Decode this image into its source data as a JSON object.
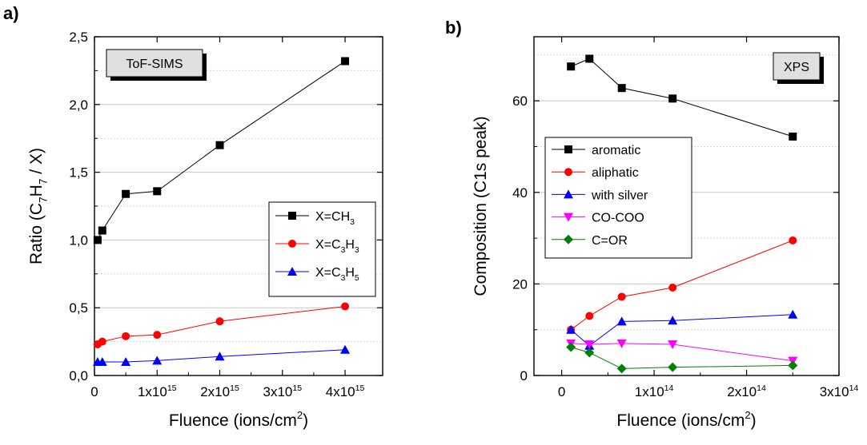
{
  "figure": {
    "panel_a": "a)",
    "panel_b": "b)"
  },
  "chart_data": [
    {
      "type": "line",
      "inset_label": "ToF-SIMS",
      "xlabel": "Fluence (ions/cm²)",
      "ylabel": "Ratio (C₇H₇ / X)",
      "xlim": [
        0,
        4600000000000000.0
      ],
      "ylim": [
        0,
        2.5
      ],
      "y_ticks": [
        0.0,
        0.5,
        1.0,
        1.5,
        2.0,
        2.5
      ],
      "y_tick_labels": [
        "0,0",
        "0,5",
        "1,0",
        "1,5",
        "2,0",
        "2,5"
      ],
      "x_ticks": [
        0,
        1000000000000000.0,
        2000000000000000.0,
        3000000000000000.0,
        4000000000000000.0
      ],
      "x_tick_labels": [
        "0",
        "1x10¹⁵",
        "2x10¹⁵",
        "3x10¹⁵",
        "4x10¹⁵"
      ],
      "grid": "horizontal",
      "legend_position": "right-middle",
      "series": [
        {
          "name": "X=CH₃",
          "color": "#000000",
          "marker": "square",
          "x": [
            50000000000000.0,
            125000000000000.0,
            500000000000000.0,
            1000000000000000.0,
            2000000000000000.0,
            4000000000000000.0
          ],
          "y": [
            1.0,
            1.07,
            1.34,
            1.36,
            1.7,
            2.32
          ]
        },
        {
          "name": "X=C₃H₃",
          "color": "#ff0000",
          "marker": "circle",
          "x": [
            50000000000000.0,
            125000000000000.0,
            500000000000000.0,
            1000000000000000.0,
            2000000000000000.0,
            4000000000000000.0
          ],
          "y": [
            0.23,
            0.25,
            0.29,
            0.3,
            0.4,
            0.51
          ]
        },
        {
          "name": "X=C₃H₅",
          "color": "#0000ff",
          "marker": "triangle-up",
          "x": [
            50000000000000.0,
            125000000000000.0,
            500000000000000.0,
            1000000000000000.0,
            2000000000000000.0,
            4000000000000000.0
          ],
          "y": [
            0.1,
            0.1,
            0.1,
            0.11,
            0.14,
            0.19
          ]
        }
      ]
    },
    {
      "type": "line",
      "inset_label": "XPS",
      "xlabel": "Fluence (ions/cm²)",
      "ylabel": "Composition (C1s peak)",
      "xlim": [
        -30000000000000.0,
        300000000000000.0
      ],
      "ylim": [
        0,
        74
      ],
      "y_ticks": [
        0,
        20,
        40,
        60
      ],
      "y_tick_labels": [
        "0",
        "20",
        "40",
        "60"
      ],
      "x_ticks": [
        0,
        100000000000000.0,
        200000000000000.0,
        300000000000000.0
      ],
      "x_tick_labels": [
        "0",
        "1x10¹⁴",
        "2x10¹⁴",
        "3x10¹⁴"
      ],
      "grid": "horizontal",
      "legend_position": "left-middle",
      "series": [
        {
          "name": "aromatic",
          "color": "#000000",
          "marker": "square",
          "x": [
            10000000000000.0,
            30000000000000.0,
            65000000000000.0,
            120000000000000.0,
            250000000000000.0
          ],
          "y": [
            67.5,
            69.2,
            62.8,
            60.5,
            52.2
          ]
        },
        {
          "name": "aliphatic",
          "color": "#ff0000",
          "marker": "circle",
          "x": [
            10000000000000.0,
            30000000000000.0,
            65000000000000.0,
            120000000000000.0,
            250000000000000.0
          ],
          "y": [
            10.0,
            13.0,
            17.2,
            19.2,
            29.5
          ]
        },
        {
          "name": "with silver",
          "color": "#0000ff",
          "marker": "triangle-up",
          "x": [
            10000000000000.0,
            30000000000000.0,
            65000000000000.0,
            120000000000000.0,
            250000000000000.0
          ],
          "y": [
            10.0,
            6.5,
            11.8,
            12.0,
            13.3
          ]
        },
        {
          "name": "CO-COO",
          "color": "#ff00ff",
          "marker": "triangle-down",
          "x": [
            10000000000000.0,
            30000000000000.0,
            65000000000000.0,
            120000000000000.0,
            250000000000000.0
          ],
          "y": [
            7.0,
            6.8,
            7.0,
            6.8,
            3.2
          ]
        },
        {
          "name": "C=OR",
          "color": "#008000",
          "marker": "diamond",
          "x": [
            10000000000000.0,
            30000000000000.0,
            65000000000000.0,
            120000000000000.0,
            250000000000000.0
          ],
          "y": [
            6.2,
            5.0,
            1.5,
            1.8,
            2.2
          ]
        }
      ]
    }
  ]
}
